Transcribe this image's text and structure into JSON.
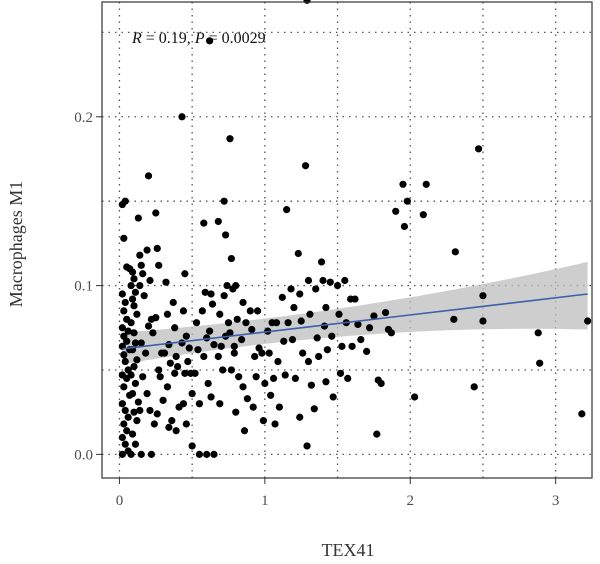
{
  "chart_data": {
    "type": "scatter",
    "xlabel": "TEX41",
    "ylabel": "Macrophages M1",
    "annotation": {
      "r_sym": "R",
      "r_val": " = 0.19, ",
      "p_sym": "P",
      "p_val": " = 0.0029"
    },
    "xlim": [
      -0.12,
      3.25
    ],
    "ylim": [
      -0.014,
      0.268
    ],
    "x_ticks": [
      0,
      1,
      2,
      3
    ],
    "x_tick_labels": [
      "0",
      "1",
      "2",
      "3"
    ],
    "y_ticks": [
      0.0,
      0.1,
      0.2
    ],
    "y_tick_labels": [
      "0.0",
      "0.1",
      "0.2"
    ],
    "grid": true,
    "colors": {
      "points": "#000000",
      "fit_line": "#3b5fa8",
      "ribbon": "#bdbdbd",
      "grid": "#555555",
      "frame": "#333333"
    },
    "fit": {
      "x": [
        0.02,
        3.22
      ],
      "y": [
        0.0625,
        0.095
      ],
      "band_lower": [
        0.057,
        0.074
      ],
      "band_upper": [
        0.068,
        0.114
      ]
    },
    "points": [
      [
        0.02,
        0.148
      ],
      [
        0.04,
        0.15
      ],
      [
        0.03,
        0.128
      ],
      [
        0.05,
        0.111
      ],
      [
        0.02,
        0.095
      ],
      [
        0.04,
        0.09
      ],
      [
        0.03,
        0.085
      ],
      [
        0.05,
        0.08
      ],
      [
        0.02,
        0.075
      ],
      [
        0.06,
        0.073
      ],
      [
        0.03,
        0.07
      ],
      [
        0.05,
        0.067
      ],
      [
        0.02,
        0.064
      ],
      [
        0.07,
        0.062
      ],
      [
        0.03,
        0.059
      ],
      [
        0.04,
        0.055
      ],
      [
        0.06,
        0.05
      ],
      [
        0.02,
        0.047
      ],
      [
        0.05,
        0.045
      ],
      [
        0.03,
        0.04
      ],
      [
        0.07,
        0.035
      ],
      [
        0.02,
        0.03
      ],
      [
        0.04,
        0.026
      ],
      [
        0.06,
        0.022
      ],
      [
        0.03,
        0.018
      ],
      [
        0.05,
        0.014
      ],
      [
        0.02,
        0.01
      ],
      [
        0.04,
        0.006
      ],
      [
        0.06,
        0.002
      ],
      [
        0.02,
        0.0
      ],
      [
        0.08,
        0.0
      ],
      [
        0.07,
        0.11
      ],
      [
        0.09,
        0.108
      ],
      [
        0.1,
        0.104
      ],
      [
        0.08,
        0.1
      ],
      [
        0.11,
        0.096
      ],
      [
        0.09,
        0.092
      ],
      [
        0.1,
        0.088
      ],
      [
        0.12,
        0.083
      ],
      [
        0.08,
        0.078
      ],
      [
        0.1,
        0.072
      ],
      [
        0.11,
        0.066
      ],
      [
        0.09,
        0.062
      ],
      [
        0.12,
        0.056
      ],
      [
        0.1,
        0.052
      ],
      [
        0.08,
        0.047
      ],
      [
        0.11,
        0.042
      ],
      [
        0.09,
        0.036
      ],
      [
        0.13,
        0.031
      ],
      [
        0.1,
        0.025
      ],
      [
        0.12,
        0.02
      ],
      [
        0.09,
        0.012
      ],
      [
        0.11,
        0.006
      ],
      [
        0.13,
        0.14
      ],
      [
        0.14,
        0.118
      ],
      [
        0.15,
        0.112
      ],
      [
        0.16,
        0.107
      ],
      [
        0.14,
        0.1
      ],
      [
        0.17,
        0.094
      ],
      [
        0.15,
        0.066
      ],
      [
        0.18,
        0.06
      ],
      [
        0.16,
        0.046
      ],
      [
        0.14,
        0.026
      ],
      [
        0.15,
        0.0
      ],
      [
        0.2,
        0.165
      ],
      [
        0.19,
        0.121
      ],
      [
        0.21,
        0.103
      ],
      [
        0.22,
        0.08
      ],
      [
        0.2,
        0.076
      ],
      [
        0.23,
        0.072
      ],
      [
        0.19,
        0.036
      ],
      [
        0.21,
        0.026
      ],
      [
        0.24,
        0.018
      ],
      [
        0.22,
        0.0
      ],
      [
        0.25,
        0.143
      ],
      [
        0.26,
        0.122
      ],
      [
        0.27,
        0.112
      ],
      [
        0.25,
        0.081
      ],
      [
        0.29,
        0.06
      ],
      [
        0.27,
        0.05
      ],
      [
        0.28,
        0.046
      ],
      [
        0.3,
        0.032
      ],
      [
        0.26,
        0.024
      ],
      [
        0.32,
        0.102
      ],
      [
        0.33,
        0.083
      ],
      [
        0.34,
        0.065
      ],
      [
        0.31,
        0.06
      ],
      [
        0.35,
        0.054
      ],
      [
        0.33,
        0.04
      ],
      [
        0.36,
        0.02
      ],
      [
        0.34,
        0.016
      ],
      [
        0.37,
        0.09
      ],
      [
        0.38,
        0.075
      ],
      [
        0.39,
        0.058
      ],
      [
        0.4,
        0.052
      ],
      [
        0.38,
        0.048
      ],
      [
        0.41,
        0.028
      ],
      [
        0.39,
        0.014
      ],
      [
        0.43,
        0.2
      ],
      [
        0.45,
        0.107
      ],
      [
        0.44,
        0.085
      ],
      [
        0.46,
        0.07
      ],
      [
        0.43,
        0.066
      ],
      [
        0.47,
        0.055
      ],
      [
        0.45,
        0.048
      ],
      [
        0.44,
        0.03
      ],
      [
        0.46,
        0.018
      ],
      [
        0.48,
        0.063
      ],
      [
        0.49,
        0.048
      ],
      [
        0.5,
        0.036
      ],
      [
        0.5,
        0.005
      ],
      [
        0.53,
        0.078
      ],
      [
        0.54,
        0.062
      ],
      [
        0.52,
        0.048
      ],
      [
        0.55,
        0.03
      ],
      [
        0.55,
        0.0
      ],
      [
        0.58,
        0.137
      ],
      [
        0.59,
        0.096
      ],
      [
        0.57,
        0.085
      ],
      [
        0.6,
        0.069
      ],
      [
        0.58,
        0.058
      ],
      [
        0.61,
        0.042
      ],
      [
        0.6,
        0.0
      ],
      [
        0.62,
        0.245
      ],
      [
        0.63,
        0.095
      ],
      [
        0.64,
        0.089
      ],
      [
        0.62,
        0.073
      ],
      [
        0.65,
        0.065
      ],
      [
        0.63,
        0.034
      ],
      [
        0.65,
        0.0
      ],
      [
        0.68,
        0.138
      ],
      [
        0.69,
        0.083
      ],
      [
        0.7,
        0.064
      ],
      [
        0.68,
        0.058
      ],
      [
        0.71,
        0.05
      ],
      [
        0.69,
        0.03
      ],
      [
        0.72,
        0.15
      ],
      [
        0.73,
        0.13
      ],
      [
        0.74,
        0.1
      ],
      [
        0.72,
        0.094
      ],
      [
        0.75,
        0.078
      ],
      [
        0.73,
        0.07
      ],
      [
        0.76,
        0.187
      ],
      [
        0.77,
        0.116
      ],
      [
        0.78,
        0.098
      ],
      [
        0.76,
        0.072
      ],
      [
        0.79,
        0.06
      ],
      [
        0.77,
        0.05
      ],
      [
        0.8,
        0.1
      ],
      [
        0.81,
        0.08
      ],
      [
        0.79,
        0.064
      ],
      [
        0.82,
        0.046
      ],
      [
        0.8,
        0.025
      ],
      [
        0.84,
        0.068
      ],
      [
        0.85,
        0.09
      ],
      [
        0.87,
        0.078
      ],
      [
        0.85,
        0.04
      ],
      [
        0.88,
        0.033
      ],
      [
        0.86,
        0.014
      ],
      [
        0.9,
        0.085
      ],
      [
        0.91,
        0.074
      ],
      [
        0.93,
        0.058
      ],
      [
        0.92,
        0.028
      ],
      [
        0.95,
        0.085
      ],
      [
        0.96,
        0.063
      ],
      [
        0.94,
        0.046
      ],
      [
        0.98,
        0.06
      ],
      [
        1.0,
        0.042
      ],
      [
        0.99,
        0.02
      ],
      [
        1.02,
        0.073
      ],
      [
        1.03,
        0.06
      ],
      [
        1.05,
        0.078
      ],
      [
        1.06,
        0.045
      ],
      [
        1.04,
        0.035
      ],
      [
        1.08,
        0.078
      ],
      [
        1.09,
        0.055
      ],
      [
        1.1,
        0.028
      ],
      [
        1.07,
        0.018
      ],
      [
        1.12,
        0.093
      ],
      [
        1.13,
        0.067
      ],
      [
        1.15,
        0.145
      ],
      [
        1.16,
        0.078
      ],
      [
        1.14,
        0.047
      ],
      [
        1.18,
        0.098
      ],
      [
        1.2,
        0.087
      ],
      [
        1.19,
        0.068
      ],
      [
        1.21,
        0.045
      ],
      [
        1.23,
        0.119
      ],
      [
        1.24,
        0.095
      ],
      [
        1.25,
        0.079
      ],
      [
        1.26,
        0.06
      ],
      [
        1.24,
        0.022
      ],
      [
        1.28,
        0.171
      ],
      [
        1.29,
        0.269
      ],
      [
        1.3,
        0.103
      ],
      [
        1.31,
        0.083
      ],
      [
        1.3,
        0.055
      ],
      [
        1.32,
        0.041
      ],
      [
        1.29,
        0.005
      ],
      [
        1.35,
        0.098
      ],
      [
        1.36,
        0.069
      ],
      [
        1.37,
        0.058
      ],
      [
        1.34,
        0.027
      ],
      [
        1.39,
        0.114
      ],
      [
        1.4,
        0.103
      ],
      [
        1.42,
        0.087
      ],
      [
        1.41,
        0.076
      ],
      [
        1.43,
        0.062
      ],
      [
        1.42,
        0.043
      ],
      [
        1.45,
        0.102
      ],
      [
        1.46,
        0.07
      ],
      [
        1.47,
        0.034
      ],
      [
        1.5,
        0.1
      ],
      [
        1.51,
        0.083
      ],
      [
        1.53,
        0.064
      ],
      [
        1.52,
        0.048
      ],
      [
        1.55,
        0.103
      ],
      [
        1.56,
        0.078
      ],
      [
        1.57,
        0.045
      ],
      [
        1.59,
        0.092
      ],
      [
        1.6,
        0.064
      ],
      [
        1.62,
        0.092
      ],
      [
        1.64,
        0.077
      ],
      [
        1.66,
        0.068
      ],
      [
        1.7,
        0.061
      ],
      [
        1.72,
        0.075
      ],
      [
        1.75,
        0.082
      ],
      [
        1.77,
        0.012
      ],
      [
        1.78,
        0.044
      ],
      [
        1.8,
        0.042
      ],
      [
        1.83,
        0.084
      ],
      [
        1.85,
        0.074
      ],
      [
        1.87,
        0.072
      ],
      [
        1.9,
        0.144
      ],
      [
        1.95,
        0.16
      ],
      [
        1.96,
        0.135
      ],
      [
        1.98,
        0.15
      ],
      [
        2.03,
        0.034
      ],
      [
        2.09,
        0.142
      ],
      [
        2.11,
        0.16
      ],
      [
        2.31,
        0.12
      ],
      [
        2.3,
        0.08
      ],
      [
        2.44,
        0.04
      ],
      [
        2.47,
        0.181
      ],
      [
        2.5,
        0.094
      ],
      [
        2.5,
        0.079
      ],
      [
        2.88,
        0.072
      ],
      [
        2.89,
        0.054
      ],
      [
        3.18,
        0.024
      ],
      [
        3.22,
        0.079
      ]
    ]
  }
}
